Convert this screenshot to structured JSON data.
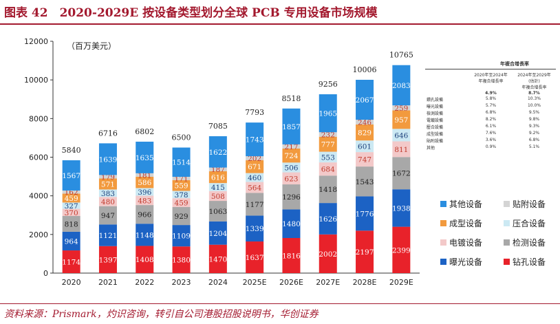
{
  "figure": {
    "title": "图表 42　2020-2029E 按设备类型划分全球 PCB 专用设备市场规模",
    "source": "资料来源：Prismark，灼识咨询，转引自公司港股招股说明书，华创证券"
  },
  "chart_data": {
    "type": "bar",
    "stacked": true,
    "unit_label": "（百万美元）",
    "categories": [
      "2020",
      "2021",
      "2022",
      "2023",
      "2024",
      "2025E",
      "2026E",
      "2027E",
      "2028E",
      "2029E"
    ],
    "ylim": [
      0,
      12000
    ],
    "yticks": [
      0,
      2000,
      4000,
      6000,
      8000,
      10000,
      12000
    ],
    "grid": false,
    "legend_position": "right",
    "totals": [
      5840,
      6716,
      6802,
      6500,
      7085,
      7793,
      8518,
      9256,
      10006,
      10765
    ],
    "series": [
      {
        "name": "钻孔设备",
        "color": "#e8222a",
        "values": [
          1174,
          1397,
          1408,
          1380,
          1470,
          1637,
          1816,
          2002,
          2197,
          2399
        ]
      },
      {
        "name": "曝光设备",
        "color": "#1c62c4",
        "values": [
          964,
          1121,
          1148,
          1109,
          1204,
          1339,
          1480,
          1626,
          1776,
          1938
        ]
      },
      {
        "name": "检测设备",
        "color": "#a8a8a8",
        "values": [
          818,
          947,
          966,
          929,
          1063,
          1177,
          1296,
          1418,
          1543,
          1672
        ]
      },
      {
        "name": "电镀设备",
        "color": "#f3c9c9",
        "values": [
          370,
          480,
          483,
          459,
          508,
          564,
          623,
          684,
          747,
          811
        ]
      },
      {
        "name": "压合设备",
        "color": "#cce9f3",
        "values": [
          327,
          383,
          396,
          378,
          415,
          460,
          506,
          553,
          601,
          646
        ]
      },
      {
        "name": "成型设备",
        "color": "#f29a3e",
        "values": [
          459,
          571,
          586,
          559,
          616,
          671,
          724,
          777,
          829,
          957
        ]
      },
      {
        "name": "贴附设备",
        "color": "#d4d4d4",
        "values": [
          162,
          179,
          181,
          171,
          187,
          202,
          217,
          232,
          246,
          259
        ]
      },
      {
        "name": "其他设备",
        "color": "#2a8ee0",
        "values": [
          1567,
          1639,
          1635,
          1514,
          1622,
          1743,
          1857,
          1965,
          2067,
          2083
        ]
      }
    ]
  },
  "legend": [
    {
      "label": "其他设备",
      "color": "#2a8ee0"
    },
    {
      "label": "贴附设备",
      "color": "#d4d4d4"
    },
    {
      "label": "成型设备",
      "color": "#f29a3e"
    },
    {
      "label": "压合设备",
      "color": "#cce9f3"
    },
    {
      "label": "电镀设备",
      "color": "#f3c9c9"
    },
    {
      "label": "检测设备",
      "color": "#a8a8a8"
    },
    {
      "label": "曝光设备",
      "color": "#1c62c4"
    },
    {
      "label": "钻孔设备",
      "color": "#e8222a"
    }
  ],
  "cagr_table": {
    "title": "年複合增長率",
    "col1": "2020年至2024年\n年複合增長率",
    "col2": "2024年至2029年\n(估計)\n年複合增長率",
    "overall": [
      "",
      "4.9%",
      "8.7%"
    ],
    "rows": [
      [
        "鑽孔設備",
        "5.8%",
        "10.3%"
      ],
      [
        "曝光設備",
        "5.7%",
        "10.0%"
      ],
      [
        "檢測設備",
        "6.8%",
        "9.5%"
      ],
      [
        "電鍍設備",
        "8.2%",
        "9.8%"
      ],
      [
        "壓合設備",
        "6.1%",
        "9.3%"
      ],
      [
        "成型設備",
        "7.6%",
        "9.2%"
      ],
      [
        "貼附設備",
        "3.6%",
        "6.8%"
      ],
      [
        "其他",
        "0.9%",
        "5.1%"
      ]
    ]
  }
}
